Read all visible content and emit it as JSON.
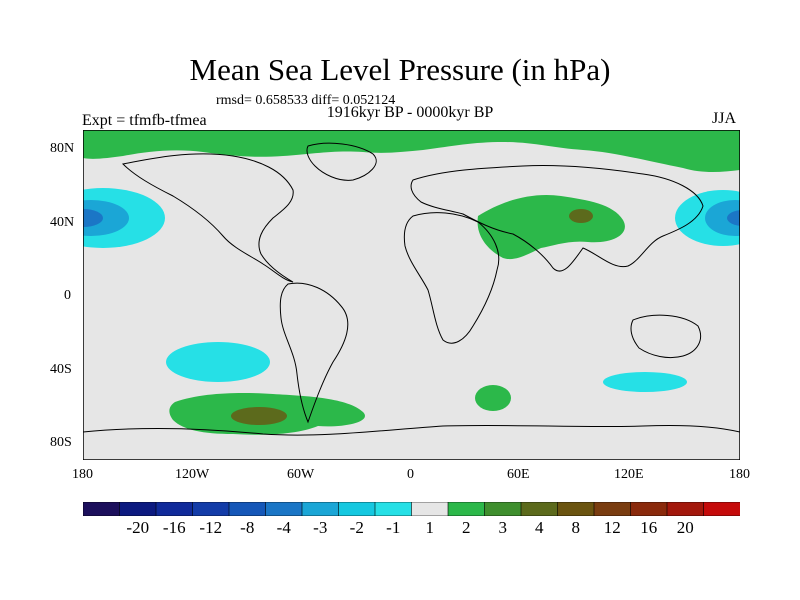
{
  "title": "Mean Sea Level Pressure (in hPa)",
  "stats": "rmsd= 0.658533 diff= 0.052124",
  "expt": "Expt = tfmfb-tfmea",
  "period": "1916kyr BP - 0000kyr BP",
  "season": "JJA",
  "lat_labels": [
    "80N",
    "40N",
    "0",
    "40S",
    "80S"
  ],
  "lon_labels": [
    "180",
    "120W",
    "60W",
    "0",
    "60E",
    "120E",
    "180"
  ],
  "colorbar": {
    "labels": [
      "-20",
      "-16",
      "-12",
      "-8",
      "-4",
      "-3",
      "-2",
      "-1",
      "1",
      "2",
      "3",
      "4",
      "8",
      "12",
      "16",
      "20"
    ],
    "colors": [
      "#1c0f5c",
      "#0c1a80",
      "#102a9a",
      "#133ca8",
      "#1557b8",
      "#1b76c6",
      "#1ba6d6",
      "#15c8e0",
      "#26e0e6",
      "#e6e6e6",
      "#2cb84a",
      "#3f8f2e",
      "#5c6a1c",
      "#6b5410",
      "#7a3d10",
      "#8a2a0c",
      "#a3180c",
      "#c50a0a"
    ]
  },
  "fills": {
    "background": "#e6e6e6",
    "positive_1": "#2cb84a",
    "positive_2": "#5c6a1c",
    "negative_1": "#26e0e6",
    "negative_2": "#1ba6d6",
    "negative_3": "#1b76c6"
  }
}
